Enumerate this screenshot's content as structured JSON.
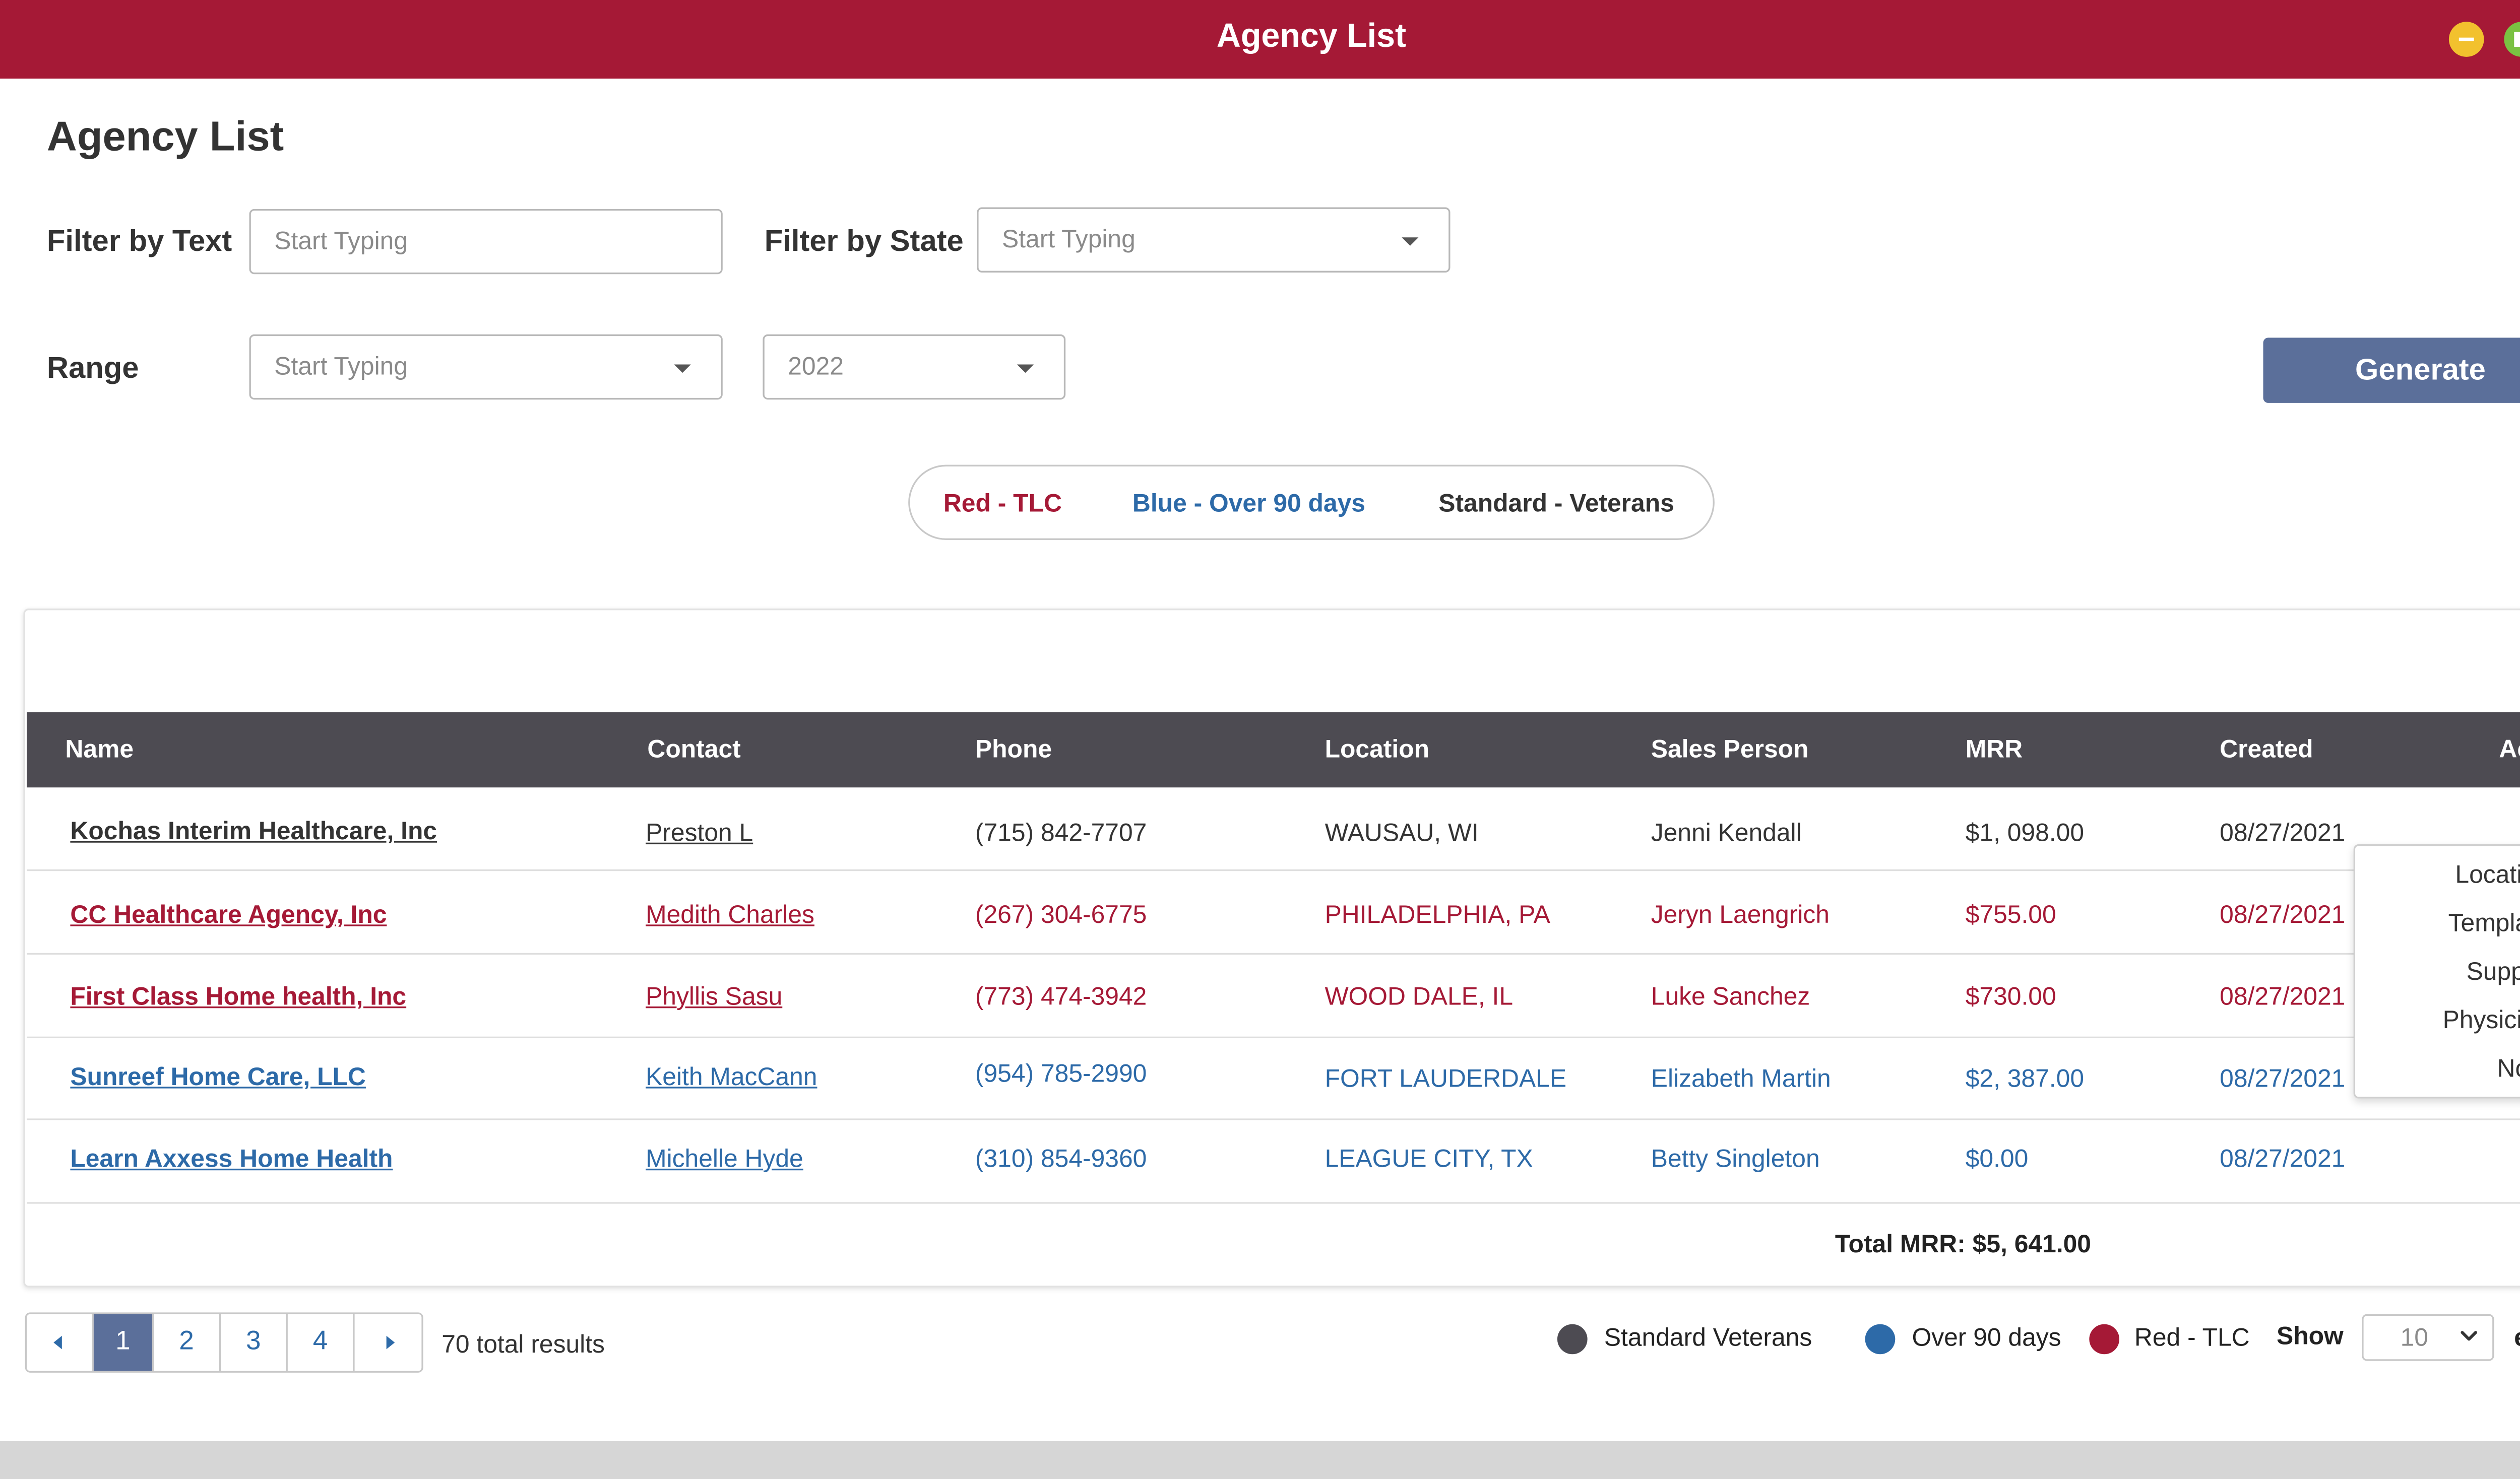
{
  "window": {
    "title": "Agency List",
    "colors": {
      "titlebar": "#a51936",
      "minimize": "#f2c12e",
      "maximize": "#7ac142",
      "close": "#e0203a"
    }
  },
  "page": {
    "title": "Agency List"
  },
  "filters": {
    "text_label": "Filter by Text",
    "text_placeholder": "Start Typing",
    "state_label": "Filter by State",
    "state_placeholder": "Start Typing",
    "range_label": "Range",
    "range_placeholder": "Start Typing",
    "year_value": "2022",
    "generate_label": "Generate"
  },
  "legend_pill": {
    "red": "Red - TLC",
    "blue": "Blue - Over 90 days",
    "standard": "Standard - Veterans"
  },
  "colors": {
    "red": "#a51936",
    "blue": "#2d6aa8",
    "standard": "#333333",
    "accent": "#5b6f9a",
    "header": "#4d4b52"
  },
  "table": {
    "columns": [
      "Name",
      "Contact",
      "Phone",
      "Location",
      "Sales Person",
      "MRR",
      "Created",
      "Action"
    ],
    "rows": [
      {
        "name": "Kochas Interim Healthcare, Inc",
        "contact": "Preston L",
        "phone": "(715) 842-7707",
        "location": "WAUSAU, WI",
        "sales": "Jenni Kendall",
        "mrr": "$1, 098.00",
        "created": "08/27/2021",
        "type": "standard"
      },
      {
        "name": "CC Healthcare Agency, Inc",
        "contact": "Medith Charles",
        "phone": "(267) 304-6775",
        "location": "PHILADELPHIA, PA",
        "sales": "Jeryn Laengrich",
        "mrr": "$755.00",
        "created": "08/27/2021",
        "type": "red"
      },
      {
        "name": "First Class Home health, Inc",
        "contact": "Phyllis Sasu",
        "phone": "(773) 474-3942",
        "location": "WOOD DALE, IL",
        "sales": "Luke Sanchez",
        "mrr": "$730.00",
        "created": "08/27/2021",
        "type": "red"
      },
      {
        "name": "Sunreef Home Care, LLC",
        "contact": "Keith MacCann",
        "phone": "(954) 785-2990",
        "location": "FORT LAUDERDALE",
        "sales": "Elizabeth Martin",
        "mrr": "$2, 387.00",
        "created": "08/27/2021",
        "type": "blue"
      },
      {
        "name": "Learn Axxess Home Health",
        "contact": "Michelle Hyde",
        "phone": "(310) 854-9360",
        "location": "LEAGUE CITY, TX",
        "sales": "Betty Singleton",
        "mrr": "$0.00",
        "created": "08/27/2021",
        "type": "blue"
      }
    ],
    "total": "Total MRR: $5, 641.00"
  },
  "action_menu": {
    "items": [
      "Locations",
      "Templates",
      "Supplies",
      "Physicians",
      "Notes"
    ]
  },
  "pagination": {
    "pages": [
      "1",
      "2",
      "3",
      "4"
    ],
    "current": "1",
    "results": "70 total results"
  },
  "footer_legend": {
    "standard": "Standard Veterans",
    "blue": "Over 90 days",
    "red": "Red - TLC",
    "show_label": "Show",
    "entries_value": "10",
    "entries_label": "entries"
  }
}
